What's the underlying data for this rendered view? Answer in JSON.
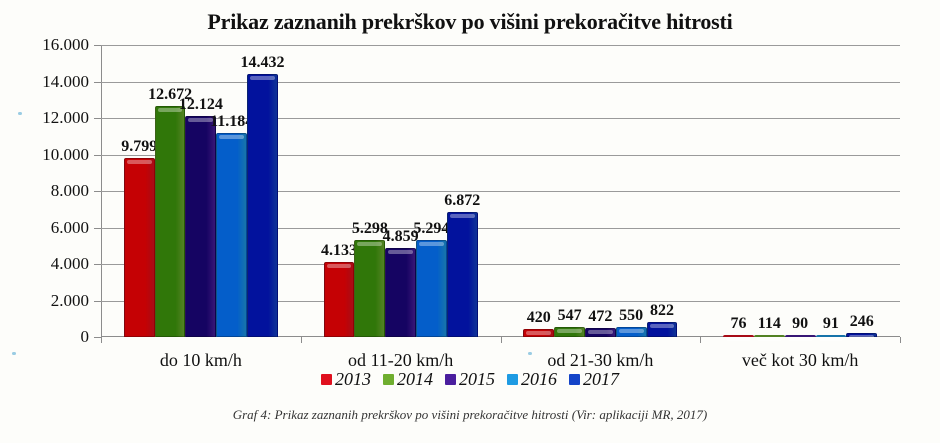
{
  "chart_data": {
    "type": "bar",
    "title": "Prikaz zaznanih prekrškov po višini prekoračitve hitrosti",
    "xlabel": "",
    "ylabel": "",
    "ylim": [
      0,
      16000
    ],
    "yticks": [
      "0",
      "2.000",
      "4.000",
      "6.000",
      "8.000",
      "10.000",
      "12.000",
      "14.000",
      "16.000"
    ],
    "grid": true,
    "legend_position": "bottom",
    "categories": [
      "do 10 km/h",
      "od 11-20 km/h",
      "od 21-30 km/h",
      "več kot 30 km/h"
    ],
    "series": [
      {
        "name": "2013",
        "color": "#e0101e",
        "values": [
          9799,
          4133,
          420,
          76
        ],
        "labels": [
          "9.799",
          "4.133",
          "420",
          "76"
        ]
      },
      {
        "name": "2014",
        "color": "#6fae2f",
        "values": [
          12672,
          5298,
          547,
          114
        ],
        "labels": [
          "12.672",
          "5.298",
          "547",
          "114"
        ]
      },
      {
        "name": "2015",
        "color": "#4a1e9e",
        "values": [
          12124,
          4859,
          472,
          90
        ],
        "labels": [
          "12.124",
          "4.859",
          "472",
          "90"
        ]
      },
      {
        "name": "2016",
        "color": "#1e9be3",
        "values": [
          11184,
          5294,
          550,
          91
        ],
        "labels": [
          "11.184",
          "5.294",
          "550",
          "91"
        ]
      },
      {
        "name": "2017",
        "color": "#1444c8",
        "values": [
          14432,
          6872,
          822,
          246
        ],
        "labels": [
          "14.432",
          "6.872",
          "822",
          "246"
        ]
      }
    ]
  },
  "caption": "Graf 4: Prikaz zaznanih prekrškov po višini prekoračitve hitrosti (Vir: aplikaciji MR, 2017)"
}
